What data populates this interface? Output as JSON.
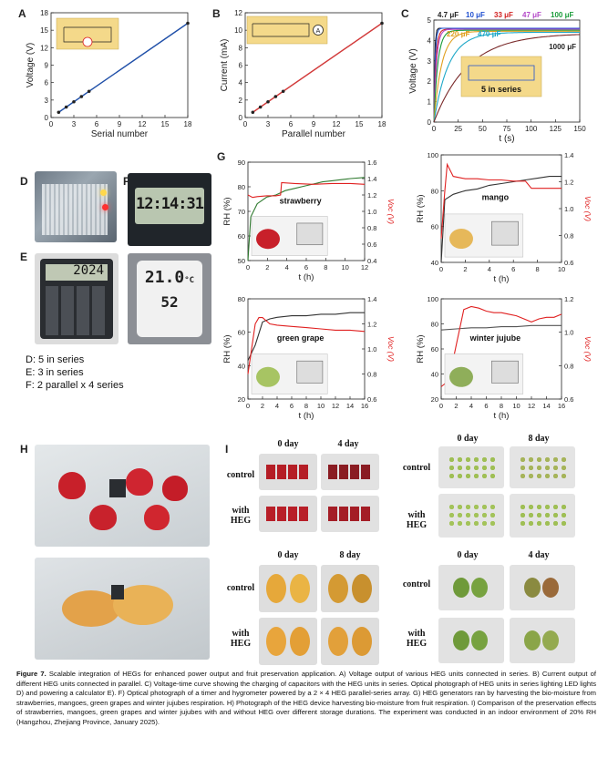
{
  "panels": {
    "A": {
      "label": "A",
      "xlabel": "Serial number",
      "ylabel": "Voltage (V)",
      "x_ticks": [
        "0",
        "3",
        "6",
        "9",
        "12",
        "15",
        "18"
      ],
      "y_ticks": [
        "0",
        "3",
        "6",
        "9",
        "12",
        "15",
        "18"
      ]
    },
    "B": {
      "label": "B",
      "xlabel": "Parallel number",
      "ylabel": "Current (mA)",
      "x_ticks": [
        "0",
        "3",
        "6",
        "9",
        "12",
        "15",
        "18"
      ],
      "y_ticks": [
        "0",
        "2",
        "4",
        "6",
        "8",
        "10",
        "12"
      ],
      "meter_symbol": "A"
    },
    "C": {
      "label": "C",
      "xlabel": "t (s)",
      "ylabel": "Voltage (V)",
      "x_ticks": [
        "0",
        "25",
        "50",
        "75",
        "100",
        "125",
        "150"
      ],
      "y_ticks": [
        "0",
        "1",
        "2",
        "3",
        "4",
        "5"
      ],
      "legend_top": [
        "4.7 μF",
        "10 μF",
        "33 μF",
        "47 μF",
        "100 μF"
      ],
      "legend_mid": [
        "220 μF",
        "470 μF"
      ],
      "legend_big": "1000 μF",
      "inset_text": "5 in series"
    },
    "G": {
      "label": "G",
      "strawberry": {
        "name": "strawberry",
        "ylabel": "RH (%)",
        "y2label": "Voc (V)",
        "xlabel": "t (h)",
        "x_ticks": [
          "0",
          "2",
          "4",
          "6",
          "8",
          "10",
          "12"
        ],
        "y_ticks": [
          "50",
          "60",
          "70",
          "80",
          "90"
        ],
        "y2_ticks": [
          "0.4",
          "0.6",
          "0.8",
          "1.0",
          "1.2",
          "1.4",
          "1.6"
        ]
      },
      "mango": {
        "name": "mango",
        "ylabel": "RH (%)",
        "y2label": "Voc (V)",
        "xlabel": "t (h)",
        "x_ticks": [
          "0",
          "2",
          "4",
          "6",
          "8",
          "10"
        ],
        "y_ticks": [
          "40",
          "60",
          "80",
          "100"
        ],
        "y2_ticks": [
          "0.6",
          "0.8",
          "1.0",
          "1.2",
          "1.4"
        ]
      },
      "green_grape": {
        "name": "green grape",
        "ylabel": "RH (%)",
        "y2label": "Voc (V)",
        "xlabel": "t (h)",
        "x_ticks": [
          "0",
          "2",
          "4",
          "6",
          "8",
          "10",
          "12",
          "14",
          "16"
        ],
        "y_ticks": [
          "20",
          "40",
          "60",
          "80"
        ],
        "y2_ticks": [
          "0.6",
          "0.8",
          "1.0",
          "1.2",
          "1.4"
        ]
      },
      "winter_jujube": {
        "name": "winter jujube",
        "ylabel": "RH (%)",
        "y2label": "Voc (V)",
        "xlabel": "t (h)",
        "x_ticks": [
          "0",
          "2",
          "4",
          "6",
          "8",
          "10",
          "12",
          "14",
          "16"
        ],
        "y_ticks": [
          "20",
          "40",
          "60",
          "80",
          "100"
        ],
        "y2_ticks": [
          "0.6",
          "0.8",
          "1.0",
          "1.2"
        ]
      }
    },
    "D": {
      "label": "D"
    },
    "E": {
      "label": "E",
      "calc_display": "2024"
    },
    "F": {
      "label": "F",
      "timer_display": "12:14:31",
      "hygro_temp": "21.0",
      "hygro_unit": "°C",
      "hygro_rh": "52"
    },
    "H": {
      "label": "H"
    },
    "I": {
      "label": "I",
      "control": "control",
      "with_heg": "with HEG",
      "strawberry_days": [
        "0 day",
        "4 day"
      ],
      "grape_days": [
        "0 day",
        "8 day"
      ],
      "mango_days": [
        "0 day",
        "8 day"
      ],
      "jujube_days": [
        "0 day",
        "4 day"
      ]
    }
  },
  "dlist": [
    "D: 5 in series",
    "E: 3 in series",
    "F: 2 parallel x 4 series"
  ],
  "caption": {
    "head": "Figure 7.",
    "text": "Scalable integration of HEGs for enhanced power output and fruit preservation application. A) Voltage output of various HEG units connected in series. B) Current output of different HEG units connected in parallel. C) Voltage-time curve showing the charging of capacitors with the HEG units in series. Optical photograph of HEG units in series lighting LED lights D) and powering a calculator E). F) Optical photograph of a timer and hygrometer powered by a 2 × 4 HEG parallel-series array. G) HEG generators ran by harvesting the bio-moisture from strawberries, mangoes, green grapes and winter jujubes respiration. H) Photograph of the HEG device harvesting bio-moisture from fruit respiration. I) Comparison of the preservation effects of strawberries, mangoes, green grapes and winter jujubes with and without HEG over different storage durations. The experiment was conducted in an indoor environment of 20% RH (Hangzhou, Zhejiang Province, January 2025)."
  },
  "chart_data": [
    {
      "type": "line",
      "title": "",
      "xlabel": "Serial number",
      "ylabel": "Voltage (V)",
      "xlim": [
        0,
        18
      ],
      "ylim": [
        0,
        18
      ],
      "series": [
        {
          "x": [
            1,
            2,
            3,
            4,
            5,
            18
          ],
          "values": [
            0.9,
            1.8,
            2.7,
            3.6,
            4.5,
            16.2
          ]
        }
      ]
    },
    {
      "type": "line",
      "title": "",
      "xlabel": "Parallel number",
      "ylabel": "Current (mA)",
      "xlim": [
        0,
        18
      ],
      "ylim": [
        0,
        12
      ],
      "series": [
        {
          "x": [
            1,
            2,
            3,
            4,
            5,
            18
          ],
          "values": [
            0.6,
            1.2,
            1.8,
            2.4,
            3.0,
            10.8
          ]
        }
      ]
    },
    {
      "type": "line",
      "title": "",
      "xlabel": "t (s)",
      "ylabel": "Voltage (V)",
      "xlim": [
        0,
        150
      ],
      "ylim": [
        0,
        5
      ],
      "series": [
        {
          "name": "4.7 μF",
          "color": "#222222",
          "tau": 0.8,
          "vmax": 4.6
        },
        {
          "name": "10 μF",
          "color": "#1f4fd0",
          "tau": 1.2,
          "vmax": 4.6
        },
        {
          "name": "33 μF",
          "color": "#d22020",
          "tau": 2.0,
          "vmax": 4.55
        },
        {
          "name": "47 μF",
          "color": "#b44ac8",
          "tau": 2.6,
          "vmax": 4.55
        },
        {
          "name": "100 μF",
          "color": "#1a9c3a",
          "tau": 4,
          "vmax": 4.5
        },
        {
          "name": "220 μF",
          "color": "#e0a020",
          "tau": 8,
          "vmax": 4.45
        },
        {
          "name": "470 μF",
          "color": "#1fa8c8",
          "tau": 15,
          "vmax": 4.4
        },
        {
          "name": "1000 μF",
          "color": "#7a2a2a",
          "tau": 35,
          "vmax": 4.35
        }
      ]
    },
    {
      "type": "line",
      "title": "strawberry",
      "xlabel": "t (h)",
      "ylabel": "RH (%)",
      "xlim": [
        0,
        12.5
      ],
      "ylim": [
        50,
        95
      ],
      "series": [
        {
          "name": "RH",
          "color": "#2f7a2f",
          "x": [
            0,
            0.3,
            1,
            2,
            3,
            4,
            5,
            6,
            7,
            8,
            9,
            10,
            11,
            12.5
          ],
          "values": [
            50,
            70,
            76,
            79,
            80,
            82,
            83,
            84,
            85,
            86,
            86.5,
            87,
            87.5,
            88
          ]
        },
        {
          "name": "Voc",
          "color": "#e02020",
          "axis": "right",
          "ylim": [
            0.4,
            1.6
          ],
          "x": [
            0,
            0.5,
            1,
            2,
            3,
            3.5,
            3.6,
            5,
            7,
            9,
            11,
            12.5
          ],
          "values": [
            1.2,
            1.17,
            1.18,
            1.19,
            1.19,
            1.2,
            1.35,
            1.34,
            1.33,
            1.34,
            1.34,
            1.33
          ]
        }
      ]
    },
    {
      "type": "line",
      "title": "mango",
      "xlabel": "t (h)",
      "ylabel": "RH (%)",
      "xlim": [
        0,
        10
      ],
      "ylim": [
        40,
        100
      ],
      "series": [
        {
          "name": "RH",
          "color": "#333333",
          "x": [
            0,
            0.3,
            1,
            2,
            3,
            4,
            5,
            6,
            7,
            8,
            9,
            10
          ],
          "values": [
            40,
            75,
            78,
            80,
            81,
            83,
            84,
            85,
            86,
            87,
            88,
            88
          ]
        },
        {
          "name": "Voc",
          "color": "#e02020",
          "axis": "right",
          "ylim": [
            0.6,
            1.5
          ],
          "x": [
            0,
            0.3,
            0.5,
            1,
            2,
            3,
            4,
            5,
            6,
            7,
            7.5,
            8,
            9,
            10
          ],
          "values": [
            0.8,
            1.2,
            1.42,
            1.32,
            1.3,
            1.3,
            1.29,
            1.29,
            1.28,
            1.28,
            1.22,
            1.22,
            1.22,
            1.22
          ]
        }
      ]
    },
    {
      "type": "line",
      "title": "green grape",
      "xlabel": "t (h)",
      "ylabel": "RH (%)",
      "xlim": [
        0,
        16
      ],
      "ylim": [
        20,
        85
      ],
      "series": [
        {
          "name": "RH",
          "color": "#333333",
          "x": [
            0,
            1,
            2,
            3,
            4,
            6,
            8,
            10,
            12,
            14,
            16
          ],
          "values": [
            45,
            55,
            70,
            72,
            73,
            74,
            74,
            75,
            75,
            76,
            76
          ]
        },
        {
          "name": "Voc",
          "color": "#e02020",
          "axis": "right",
          "ylim": [
            0.6,
            1.4
          ],
          "x": [
            0,
            1,
            1.5,
            2,
            3,
            4,
            6,
            8,
            10,
            12,
            14,
            16
          ],
          "values": [
            0.8,
            1.2,
            1.25,
            1.25,
            1.2,
            1.19,
            1.18,
            1.17,
            1.16,
            1.15,
            1.15,
            1.14
          ]
        }
      ]
    },
    {
      "type": "line",
      "title": "winter jujube",
      "xlabel": "t (h)",
      "ylabel": "RH (%)",
      "xlim": [
        0,
        16
      ],
      "ylim": [
        20,
        110
      ],
      "series": [
        {
          "name": "RH",
          "color": "#555555",
          "x": [
            0,
            2,
            4,
            6,
            8,
            10,
            12,
            14,
            16
          ],
          "values": [
            82,
            83,
            84,
            84,
            85,
            85,
            86,
            86,
            86
          ]
        },
        {
          "name": "Voc",
          "color": "#e02020",
          "axis": "right",
          "ylim": [
            0.6,
            1.25
          ],
          "x": [
            0,
            1,
            2,
            3,
            4,
            5,
            6,
            7,
            8,
            9,
            10,
            11,
            12,
            13,
            14,
            15,
            16
          ],
          "values": [
            0.68,
            0.72,
            0.95,
            1.18,
            1.2,
            1.19,
            1.17,
            1.16,
            1.16,
            1.15,
            1.14,
            1.12,
            1.1,
            1.12,
            1.13,
            1.13,
            1.15
          ]
        }
      ]
    }
  ]
}
